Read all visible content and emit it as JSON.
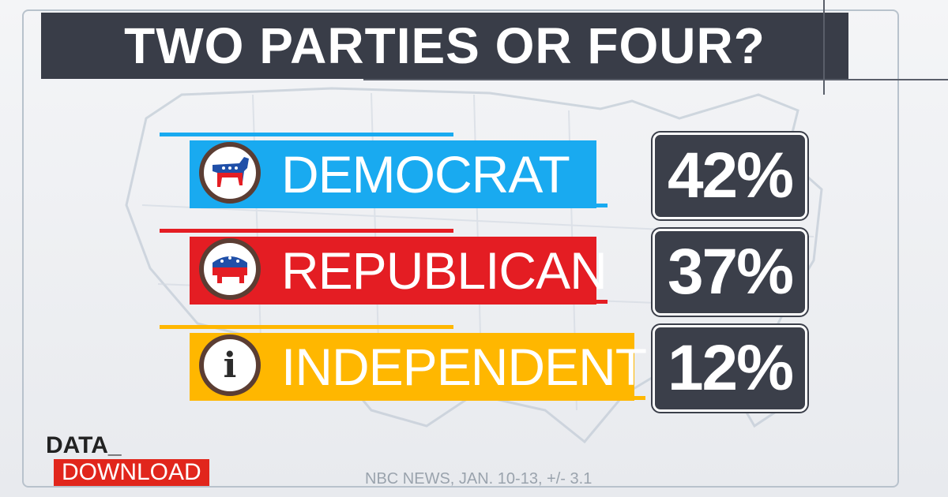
{
  "title": "TWO PARTIES OR FOUR?",
  "colors": {
    "democrat": "#19aaf0",
    "republican": "#e41d23",
    "independent": "#ffb700",
    "dark": "#3b3f4a"
  },
  "chart_data": {
    "type": "bar",
    "title": "TWO PARTIES OR FOUR?",
    "categories": [
      "DEMOCRAT",
      "REPUBLICAN",
      "INDEPENDENT"
    ],
    "values": [
      42,
      37,
      12
    ],
    "value_labels": [
      "42%",
      "37%",
      "12%"
    ],
    "icons": [
      "donkey-icon",
      "elephant-icon",
      "info-icon"
    ],
    "grid": false,
    "legend": "none"
  },
  "branding": {
    "line1": "DATA_",
    "line2": "DOWNLOAD"
  },
  "source": "NBC NEWS, JAN. 10-13, +/- 3.1"
}
